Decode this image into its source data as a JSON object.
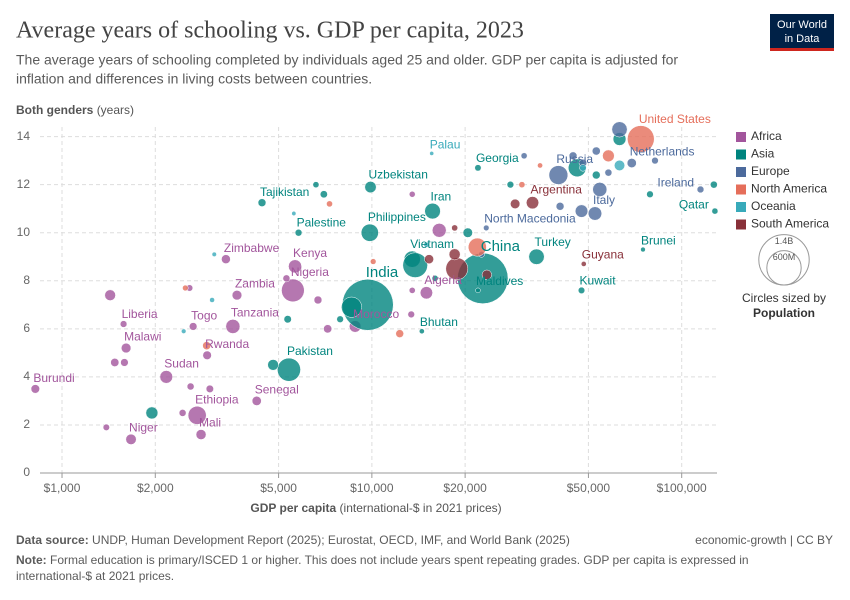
{
  "chart_data": {
    "type": "scatter",
    "title": "Average years of schooling vs. GDP per capita, 2023",
    "subtitle": [
      "The average years of schooling completed by individuals aged 25 and older. GDP per capita is adjusted for",
      "inflation and differences in living costs between countries."
    ],
    "logo": [
      "Our World",
      "in Data"
    ],
    "y_label": "Both genders",
    "y_label_unit": "(years)",
    "x_label": "GDP per capita",
    "x_label_unit": "(international-$ in 2021 prices)",
    "x_log": true,
    "grid": true,
    "xlim": [
      800,
      130000
    ],
    "xticks": [
      {
        "value": 1000,
        "label": "$1,000"
      },
      {
        "value": 2000,
        "label": "$2,000"
      },
      {
        "value": 5000,
        "label": "$5,000"
      },
      {
        "value": 10000,
        "label": "$10,000"
      },
      {
        "value": 20000,
        "label": "$20,000"
      },
      {
        "value": 50000,
        "label": "$50,000"
      },
      {
        "value": 100000,
        "label": "$100,000"
      }
    ],
    "ylim": [
      0,
      14.4
    ],
    "yticks": [
      0,
      2,
      4,
      6,
      8,
      10,
      12,
      14
    ],
    "legend_position": "right",
    "size_legend_title": "Circles sized by",
    "size_legend_variable": "Population",
    "size_legend": [
      {
        "value": 1400000000,
        "label": "1.4B"
      },
      {
        "value": 600000000,
        "label": "600M"
      }
    ],
    "series": [
      {
        "name": "Africa",
        "color": "#a2559c",
        "x": [
          820,
          1670,
          2810,
          2730,
          4250,
          2170,
          2940,
          1610,
          2650,
          3560,
          1580,
          3670,
          5560,
          5650,
          3380,
          8830,
          15000,
          1430,
          1480,
          1590,
          2600,
          3000,
          2450,
          2580,
          6700,
          7200,
          13400,
          13500,
          16500,
          13500,
          1390,
          5300
        ],
        "values": [
          3.5,
          1.4,
          1.6,
          2.4,
          3.0,
          4.0,
          4.9,
          5.2,
          6.1,
          6.1,
          6.2,
          7.4,
          7.6,
          8.6,
          8.9,
          6.1,
          7.5,
          7.4,
          4.6,
          4.6,
          3.6,
          3.5,
          2.5,
          7.7,
          7.2,
          6.0,
          6.6,
          7.6,
          10.1,
          11.6,
          1.9,
          8.1
        ],
        "sizes": [
          14000000,
          27000000,
          24000000,
          130000000,
          18000000,
          50000000,
          14000000,
          21000000,
          9000000,
          67000000,
          5000000,
          21000000,
          230000000,
          55000000,
          16000000,
          38000000,
          46000000,
          30000000,
          12000000,
          9000000,
          6000000,
          8000000,
          6000000,
          4000000,
          10000000,
          12000000,
          5000000,
          3000000,
          64000000,
          2500000,
          4000000,
          6000000
        ],
        "labels": [
          "Burundi",
          "Niger",
          "Mali",
          "Ethiopia",
          "Senegal",
          "Sudan",
          "Rwanda",
          "Malawi",
          "Togo",
          "Tanzania",
          "Liberia",
          "Zambia",
          "Nigeria",
          "Kenya",
          "Zimbabwe",
          "Morocco",
          "Algeria",
          null,
          null,
          null,
          null,
          null,
          null,
          null,
          null,
          null,
          null,
          null,
          null,
          null,
          null,
          null
        ]
      },
      {
        "name": "Asia",
        "color": "#00847e",
        "x": [
          9700,
          22800,
          5400,
          14500,
          22000,
          34000,
          47500,
          75000,
          128000,
          13500,
          9850,
          15700,
          9900,
          4420,
          5800,
          22000,
          13800,
          1950,
          4800,
          5350,
          6600,
          7000,
          7900,
          16000,
          20400,
          28000,
          53000,
          79000,
          127000,
          63000,
          8600,
          46000
        ],
        "values": [
          7.0,
          8.1,
          4.3,
          5.9,
          7.6,
          9.0,
          7.6,
          9.3,
          10.9,
          8.9,
          10.0,
          10.9,
          11.9,
          11.25,
          10.0,
          12.7,
          8.65,
          2.5,
          4.5,
          6.4,
          12.0,
          11.6,
          6.4,
          8.1,
          10.0,
          12.0,
          12.4,
          11.6,
          12.0,
          13.9,
          6.9,
          12.7
        ],
        "sizes": [
          1440000000,
          1410000000,
          240000000,
          800000,
          500000,
          86000000,
          4300000,
          450000,
          2900000,
          100000000,
          115000000,
          90000000,
          36000000,
          10000000,
          5400000,
          3800000,
          280000000,
          42000000,
          30000000,
          8000000,
          3000000,
          7000000,
          5000000,
          3000000,
          20000000,
          5000000,
          10000000,
          5000000,
          6000000,
          52000000,
          173000000,
          124000000
        ],
        "labels": [
          "India",
          "China",
          "Pakistan",
          "Bhutan",
          "Maldives",
          "Turkey",
          "Kuwait",
          "Brunei",
          "Qatar",
          "Vietnam",
          "Philippines",
          "Iran",
          "Uzbekistan",
          "Tajikistan",
          "Palestine",
          "Georgia",
          null,
          null,
          null,
          null,
          null,
          null,
          null,
          null,
          null,
          null,
          null,
          null,
          null,
          null,
          null,
          null
        ]
      },
      {
        "name": "Europe",
        "color": "#4c6a9c",
        "x": [
          40000,
          23400,
          52500,
          115000,
          69000,
          63000,
          53000,
          44600,
          48000,
          58000,
          47500,
          40500,
          54400,
          31000,
          22600,
          82000
        ],
        "values": [
          12.4,
          10.2,
          10.8,
          11.8,
          12.9,
          14.3,
          13.4,
          13.2,
          12.9,
          12.5,
          10.9,
          11.1,
          11.8,
          13.2,
          9.1,
          13.0
        ],
        "sizes": [
          144000000,
          1800000,
          59000000,
          5300000,
          18000000,
          84000000,
          11000000,
          10000000,
          9000000,
          6000000,
          48000000,
          10000000,
          68000000,
          3000000,
          2500000,
          5000000
        ],
        "labels": [
          "Russia",
          "North Macedonia",
          "Italy",
          "Ireland",
          "Netherlands",
          null,
          null,
          null,
          null,
          null,
          null,
          null,
          null,
          null,
          null,
          null
        ]
      },
      {
        "name": "North America",
        "color": "#e56e5a",
        "x": [
          73800,
          21900,
          30500,
          34900,
          10100,
          12300,
          7300,
          2500,
          2930,
          58000
        ],
        "values": [
          13.9,
          9.4,
          12.0,
          12.8,
          8.8,
          5.8,
          11.2,
          7.7,
          5.3,
          13.2
        ],
        "sizes": [
          340000000,
          130000000,
          3000000,
          1000000,
          2000000,
          10000000,
          3000000,
          2000000,
          11000000,
          40000000
        ],
        "labels": [
          "United States",
          null,
          null,
          null,
          null,
          null,
          null,
          null,
          null,
          null
        ]
      },
      {
        "name": "Oceania",
        "color": "#38aaba",
        "x": [
          15600,
          3100,
          3050,
          2470,
          5600,
          15000,
          63000,
          48000
        ],
        "values": [
          13.3,
          9.1,
          7.2,
          5.9,
          10.8,
          9.5,
          12.8,
          12.7
        ],
        "sizes": [
          20000,
          200000,
          700000,
          300000,
          100000,
          900000,
          27000000,
          5000000
        ],
        "labels": [
          "Palau",
          null,
          null,
          null,
          null,
          null,
          null,
          null
        ]
      },
      {
        "name": "South America",
        "color": "#883039",
        "x": [
          33000,
          48300,
          18800,
          15300,
          18500,
          23500,
          18500,
          29000
        ],
        "values": [
          11.25,
          8.7,
          8.5,
          8.9,
          10.2,
          8.25,
          9.1,
          11.2
        ],
        "sizes": [
          46000000,
          800000,
          211000000,
          17000000,
          3000000,
          20000000,
          33000000,
          20000000
        ],
        "labels": [
          "Argentina",
          "Guyana",
          null,
          null,
          null,
          null,
          null,
          null
        ]
      }
    ],
    "source_label": "Data source:",
    "source": "UNDP, Human Development Report (2025); Eurostat, OECD, IMF, and World Bank (2025)",
    "license": "economic-growth | CC BY",
    "note_label": "Note:",
    "note": [
      "Formal education is primary/ISCED 1 or higher. This does not include years spent repeating grades. GDP per capita is expressed in",
      "international-$ at 2021 prices."
    ]
  }
}
